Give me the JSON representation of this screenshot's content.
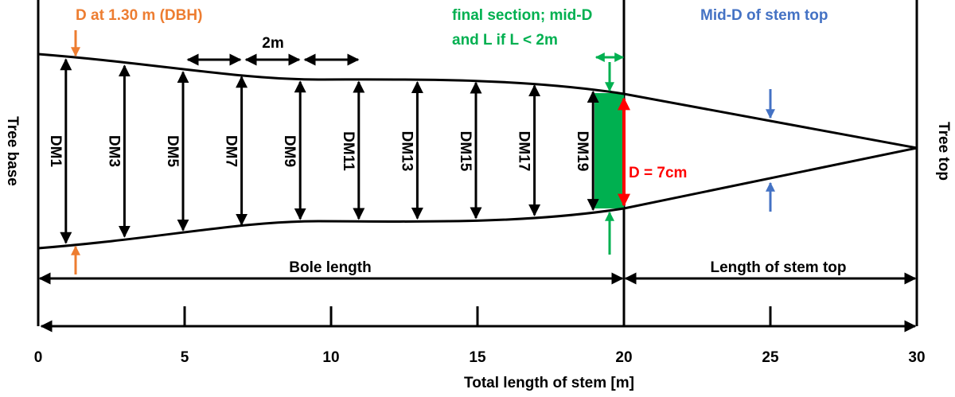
{
  "labels": {
    "dbh": "D at 1.30 m (DBH)",
    "segment": "2m",
    "final_section": [
      "final section; mid-D",
      "and L if L < 2m"
    ],
    "mid_d_top": "Mid-D of stem top",
    "tree_base": "Tree base",
    "tree_top": "Tree top",
    "top_diameter": "D = 7cm",
    "bole_length": "Bole length",
    "stem_top_length": "Length of stem top"
  },
  "diameters": [
    "DM1",
    "DM3",
    "DM5",
    "DM7",
    "DM9",
    "DM11",
    "DM13",
    "DM15",
    "DM17",
    "DM19"
  ],
  "axis": {
    "title": "Total length of stem [m]",
    "xlim": [
      0,
      30
    ],
    "xticks": [
      0,
      5,
      10,
      15,
      20,
      25,
      30
    ]
  }
}
